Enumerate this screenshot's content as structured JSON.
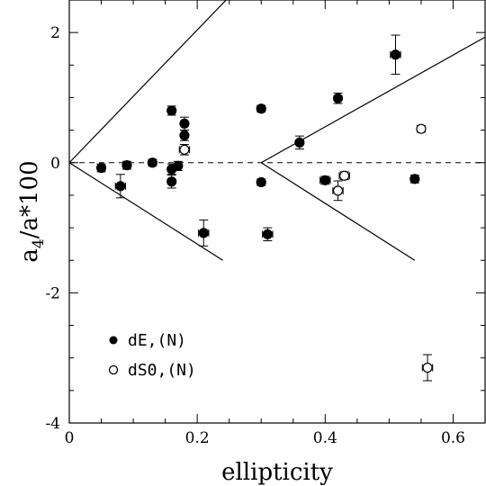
{
  "chart_data": {
    "type": "scatter",
    "xlabel": "ellipticity",
    "ylabel_main": "a",
    "ylabel_sub": "4",
    "ylabel_rest": "/a*100",
    "xlim": [
      0,
      0.65
    ],
    "ylim": [
      -4,
      2.5
    ],
    "xticks": [
      {
        "value": 0,
        "label": "0"
      },
      {
        "value": 0.2,
        "label": "0.2"
      },
      {
        "value": 0.4,
        "label": "0.4"
      },
      {
        "value": 0.6,
        "label": "0.6"
      }
    ],
    "yticks": [
      {
        "value": 2,
        "label": "2"
      },
      {
        "value": 0,
        "label": "0"
      },
      {
        "value": -2,
        "label": "-2"
      },
      {
        "value": -4,
        "label": "-4"
      }
    ],
    "grid": false,
    "legend_position": "bottom-left",
    "reference_lines": [
      {
        "points": [
          [
            0,
            0
          ],
          [
            0.25,
            2.55
          ]
        ]
      },
      {
        "points": [
          [
            0,
            0
          ],
          [
            0.24,
            -1.5
          ]
        ]
      },
      {
        "points": [
          [
            0.3,
            0
          ],
          [
            0.65,
            1.93
          ]
        ]
      },
      {
        "points": [
          [
            0.3,
            0
          ],
          [
            0.54,
            -1.5
          ]
        ]
      }
    ],
    "zero_line": {
      "y": 0,
      "style": "dashed"
    },
    "series": [
      {
        "name": "dE,(N)",
        "marker": "filled-circle",
        "points": [
          {
            "x": 0.05,
            "y": -0.08,
            "xerr": 0.005,
            "yerr": 0.06
          },
          {
            "x": 0.08,
            "y": -0.36,
            "xerr": 0.008,
            "yerr": 0.18
          },
          {
            "x": 0.09,
            "y": -0.04,
            "xerr": 0.005,
            "yerr": 0.06
          },
          {
            "x": 0.13,
            "y": 0.0,
            "xerr": 0.005,
            "yerr": 0.05
          },
          {
            "x": 0.16,
            "y": 0.8,
            "xerr": 0.005,
            "yerr": 0.07
          },
          {
            "x": 0.16,
            "y": -0.1,
            "xerr": 0.005,
            "yerr": 0.08
          },
          {
            "x": 0.16,
            "y": -0.29,
            "xerr": 0.005,
            "yerr": 0.1
          },
          {
            "x": 0.17,
            "y": -0.05,
            "xerr": 0.005,
            "yerr": 0.07
          },
          {
            "x": 0.18,
            "y": 0.6,
            "xerr": 0.005,
            "yerr": 0.1
          },
          {
            "x": 0.18,
            "y": 0.42,
            "xerr": 0.005,
            "yerr": 0.08
          },
          {
            "x": 0.21,
            "y": -1.08,
            "xerr": 0.008,
            "yerr": 0.2
          },
          {
            "x": 0.3,
            "y": 0.83,
            "xerr": 0.005,
            "yerr": 0.05
          },
          {
            "x": 0.3,
            "y": -0.3,
            "xerr": 0.005,
            "yerr": 0.05
          },
          {
            "x": 0.31,
            "y": -1.1,
            "xerr": 0.008,
            "yerr": 0.1
          },
          {
            "x": 0.36,
            "y": 0.31,
            "xerr": 0.005,
            "yerr": 0.1
          },
          {
            "x": 0.4,
            "y": -0.27,
            "xerr": 0.008,
            "yerr": 0.06
          },
          {
            "x": 0.42,
            "y": 0.99,
            "xerr": 0.005,
            "yerr": 0.08
          },
          {
            "x": 0.51,
            "y": 1.66,
            "xerr": 0.008,
            "yerr": 0.3
          },
          {
            "x": 0.54,
            "y": -0.25,
            "xerr": 0.005,
            "yerr": 0.06
          }
        ]
      },
      {
        "name": "dS0,(N)",
        "marker": "open-circle",
        "points": [
          {
            "x": 0.18,
            "y": 0.2,
            "xerr": 0.008,
            "yerr": 0.08
          },
          {
            "x": 0.42,
            "y": -0.43,
            "xerr": 0.008,
            "yerr": 0.15
          },
          {
            "x": 0.43,
            "y": -0.2,
            "xerr": 0.008,
            "yerr": 0.06
          },
          {
            "x": 0.55,
            "y": 0.52,
            "xerr": 0.005,
            "yerr": 0.05
          },
          {
            "x": 0.56,
            "y": -3.15,
            "xerr": 0.008,
            "yerr": 0.2
          }
        ]
      }
    ]
  }
}
